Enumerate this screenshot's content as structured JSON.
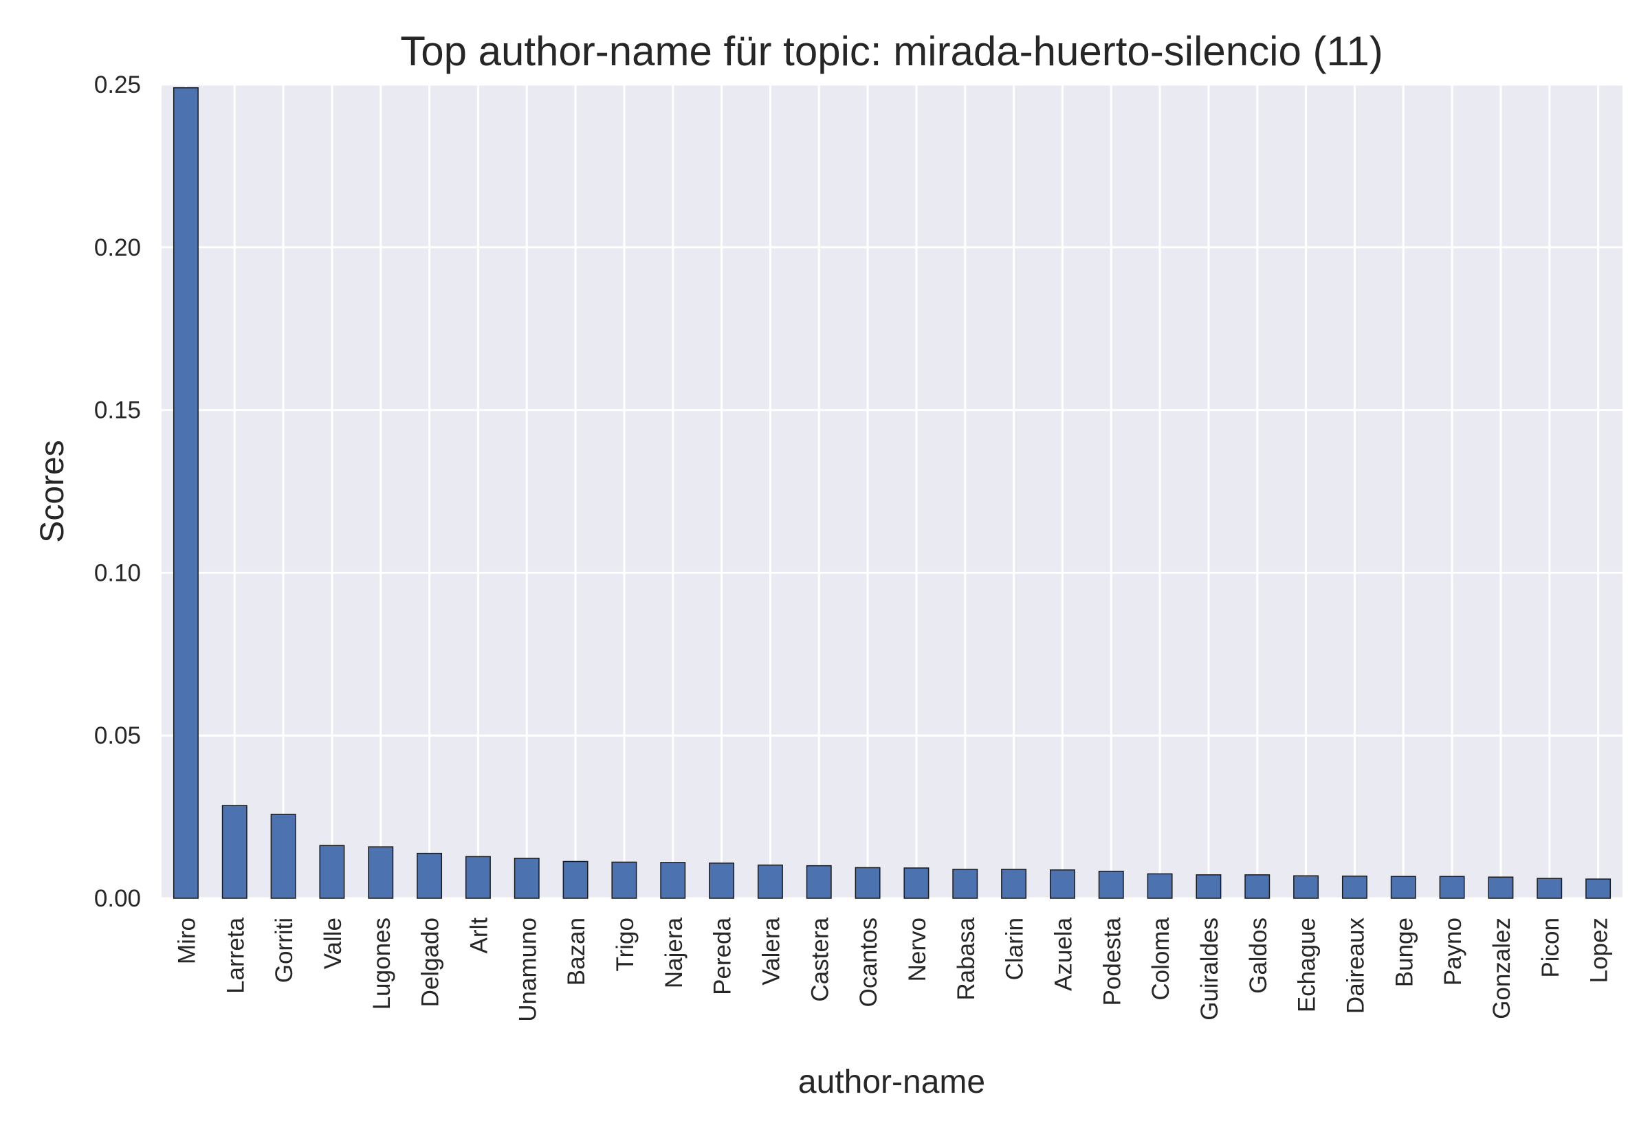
{
  "chart_data": {
    "type": "bar",
    "title": "Top author-name für topic: mirada-huerto-silencio (11)",
    "xlabel": "author-name",
    "ylabel": "Scores",
    "ylim": [
      0,
      0.25
    ],
    "yticks": [
      "0.00",
      "0.05",
      "0.10",
      "0.15",
      "0.20",
      "0.25"
    ],
    "grid": true,
    "categories": [
      "Miro",
      "Larreta",
      "Gorriti",
      "Valle",
      "Lugones",
      "Delgado",
      "Arlt",
      "Unamuno",
      "Bazan",
      "Trigo",
      "Najera",
      "Pereda",
      "Valera",
      "Castera",
      "Ocantos",
      "Nervo",
      "Rabasa",
      "Clarin",
      "Azuela",
      "Podesta",
      "Coloma",
      "Guiraldes",
      "Galdos",
      "Echague",
      "Daireaux",
      "Bunge",
      "Payno",
      "Gonzalez",
      "Picon",
      "Lopez"
    ],
    "values": [
      0.249,
      0.0285,
      0.0258,
      0.0162,
      0.0158,
      0.0138,
      0.0128,
      0.0123,
      0.0113,
      0.0111,
      0.011,
      0.0108,
      0.0102,
      0.01,
      0.0094,
      0.0093,
      0.0089,
      0.0089,
      0.0087,
      0.0083,
      0.0075,
      0.0072,
      0.0072,
      0.0069,
      0.0068,
      0.0067,
      0.0067,
      0.0065,
      0.0061,
      0.0059
    ],
    "colors": {
      "bar": "#4c72b0",
      "bar_edge": "#1a1a1a",
      "plot_background": "#eaeaf2",
      "grid": "#ffffff",
      "text": "#262626"
    }
  }
}
